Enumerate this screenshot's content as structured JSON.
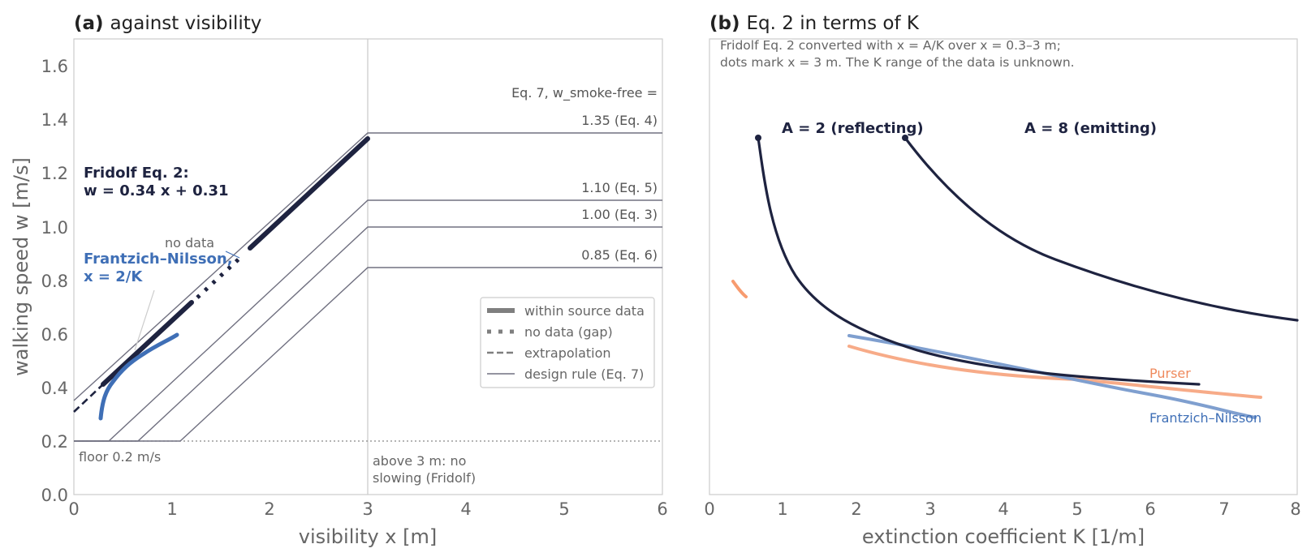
{
  "colors": {
    "navy": "#1e2340",
    "blue": "#3f6fb6",
    "blue_light": "#7f9fcf",
    "orange": "#f79b6f",
    "orange_text": "#ef8a5d",
    "grey_rule": "#707080",
    "frame": "#cccccc",
    "tick_text": "#666666"
  },
  "chart_data": [
    {
      "id": "a",
      "type": "line",
      "title_tag": "(a)",
      "title": "against visibility",
      "xlabel": "visibility x [m]",
      "ylabel": "walking speed w [m/s]",
      "xlim": [
        0,
        6
      ],
      "ylim": [
        0,
        1.7
      ],
      "xticks": [
        "0",
        "1",
        "2",
        "3",
        "4",
        "5",
        "6"
      ],
      "yticks": [
        "0.0",
        "0.2",
        "0.4",
        "0.6",
        "0.8",
        "1.0",
        "1.2",
        "1.4",
        "1.6"
      ],
      "grid": false,
      "series": [
        {
          "name": "Fridolf Eq. 2",
          "style": "extrapolation",
          "x": [
            0,
            0.3
          ],
          "y": [
            0.31,
            0.412
          ]
        },
        {
          "name": "Fridolf Eq. 2",
          "style": "within source data",
          "x": [
            0.3,
            1.2
          ],
          "y": [
            0.412,
            0.718
          ]
        },
        {
          "name": "Fridolf Eq. 2",
          "style": "no data (gap)",
          "x": [
            1.2,
            1.8
          ],
          "y": [
            0.718,
            0.922
          ]
        },
        {
          "name": "Fridolf Eq. 2",
          "style": "within source data",
          "x": [
            1.8,
            3
          ],
          "y": [
            0.922,
            1.33
          ]
        },
        {
          "name": "Frantzich–Nilsson",
          "style": "within source data",
          "x": [
            0.27,
            0.33,
            0.4,
            0.5,
            0.6,
            0.7,
            0.8,
            0.9,
            1.0,
            1.05
          ],
          "y": [
            0.28,
            0.36,
            0.42,
            0.47,
            0.51,
            0.545,
            0.565,
            0.58,
            0.595,
            0.6
          ]
        },
        {
          "name": "Eq. 7, w_smoke-free = 1.35",
          "style": "design rule (Eq. 7)",
          "x": [
            0,
            0,
            3,
            6
          ],
          "y": [
            0.2,
            0.35,
            1.35,
            1.35
          ]
        },
        {
          "name": "Eq. 7, w_smoke-free = 1.10",
          "style": "design rule (Eq. 7)",
          "x": [
            0,
            0.36,
            3,
            6
          ],
          "y": [
            0.2,
            0.2,
            1.1,
            1.1
          ]
        },
        {
          "name": "Eq. 7, w_smoke-free = 1.00",
          "style": "design rule (Eq. 7)",
          "x": [
            0,
            0.65,
            3,
            6
          ],
          "y": [
            0.2,
            0.2,
            1.0,
            1.0
          ]
        },
        {
          "name": "Eq. 7, w_smoke-free = 0.85",
          "style": "design rule (Eq. 7)",
          "x": [
            0,
            1.09,
            3,
            6
          ],
          "y": [
            0.2,
            0.2,
            0.85,
            0.85
          ]
        }
      ],
      "reference_lines": {
        "floor_y": 0.2,
        "vertical_x": 3
      },
      "legend": {
        "placement": "center-right",
        "entries": [
          "within source data",
          "no data (gap)",
          "extrapolation",
          "design rule (Eq. 7)"
        ]
      },
      "annotations": {
        "fridolf_line1": "Fridolf Eq. 2:",
        "fridolf_line2": "w = 0.34 x + 0.31",
        "fn_line1": "Frantzich–Nilsson,",
        "fn_line2": "x = 2/K",
        "no_data": "no data",
        "eq7_header": "Eq. 7, w_smoke-free =",
        "level_135": "1.35 (Eq. 4)",
        "level_110": "1.10 (Eq. 5)",
        "level_100": "1.00 (Eq. 3)",
        "level_085": "0.85 (Eq. 6)",
        "floor": "floor 0.2 m/s",
        "above_line1": "above 3 m: no",
        "above_line2": "slowing (Fridolf)"
      }
    },
    {
      "id": "b",
      "type": "line",
      "title_tag": "(b)",
      "title": "Eq. 2 in terms of K",
      "xlabel": "extinction coefficient K [1/m]",
      "xlim": [
        0,
        8
      ],
      "ylim": [
        0,
        1.7
      ],
      "xticks": [
        "0",
        "1",
        "2",
        "3",
        "4",
        "5",
        "6",
        "7",
        "8"
      ],
      "grid": false,
      "series": [
        {
          "name": "A = 2 (reflecting)",
          "x": [
            0.667,
            0.8,
            1.0,
            1.3,
            1.6,
            2.0,
            2.5,
            3.0,
            4.0,
            5.0,
            6.0,
            6.667
          ],
          "y": [
            1.33,
            1.16,
            0.99,
            0.833,
            0.735,
            0.65,
            0.582,
            0.537,
            0.48,
            0.446,
            0.423,
            0.412
          ]
        },
        {
          "name": "A = 8 (emitting)",
          "x": [
            2.667,
            3.0,
            3.5,
            4.0,
            5.0,
            6.0,
            7.0,
            8.0
          ],
          "y": [
            1.33,
            1.217,
            1.087,
            0.99,
            0.854,
            0.763,
            0.699,
            0.65
          ]
        },
        {
          "name": "Frantzich–Nilsson",
          "x": [
            1.9,
            3.0,
            4.0,
            5.0,
            6.0,
            7.0,
            7.5
          ],
          "y": [
            0.6,
            0.54,
            0.49,
            0.43,
            0.37,
            0.31,
            0.28
          ]
        },
        {
          "name": "Purser",
          "x": [
            1.9,
            2.5,
            3.0,
            4.0,
            5.0,
            6.0,
            7.0,
            7.5
          ],
          "y": [
            0.555,
            0.515,
            0.488,
            0.452,
            0.425,
            0.405,
            0.385,
            0.37
          ]
        },
        {
          "name": "Purser",
          "x": [
            0.32,
            0.4,
            0.5
          ],
          "y": [
            0.8,
            0.77,
            0.74
          ]
        }
      ],
      "annotations": {
        "note_line1": "Fridolf Eq. 2 converted with x = A/K over x = 0.3–3 m;",
        "note_line2": "dots mark x = 3 m. The K range of the data is unknown.",
        "label_a2": "A = 2 (reflecting)",
        "label_a8": "A = 8 (emitting)",
        "label_purser": "Purser",
        "label_fn": "Frantzich–Nilsson"
      }
    }
  ]
}
